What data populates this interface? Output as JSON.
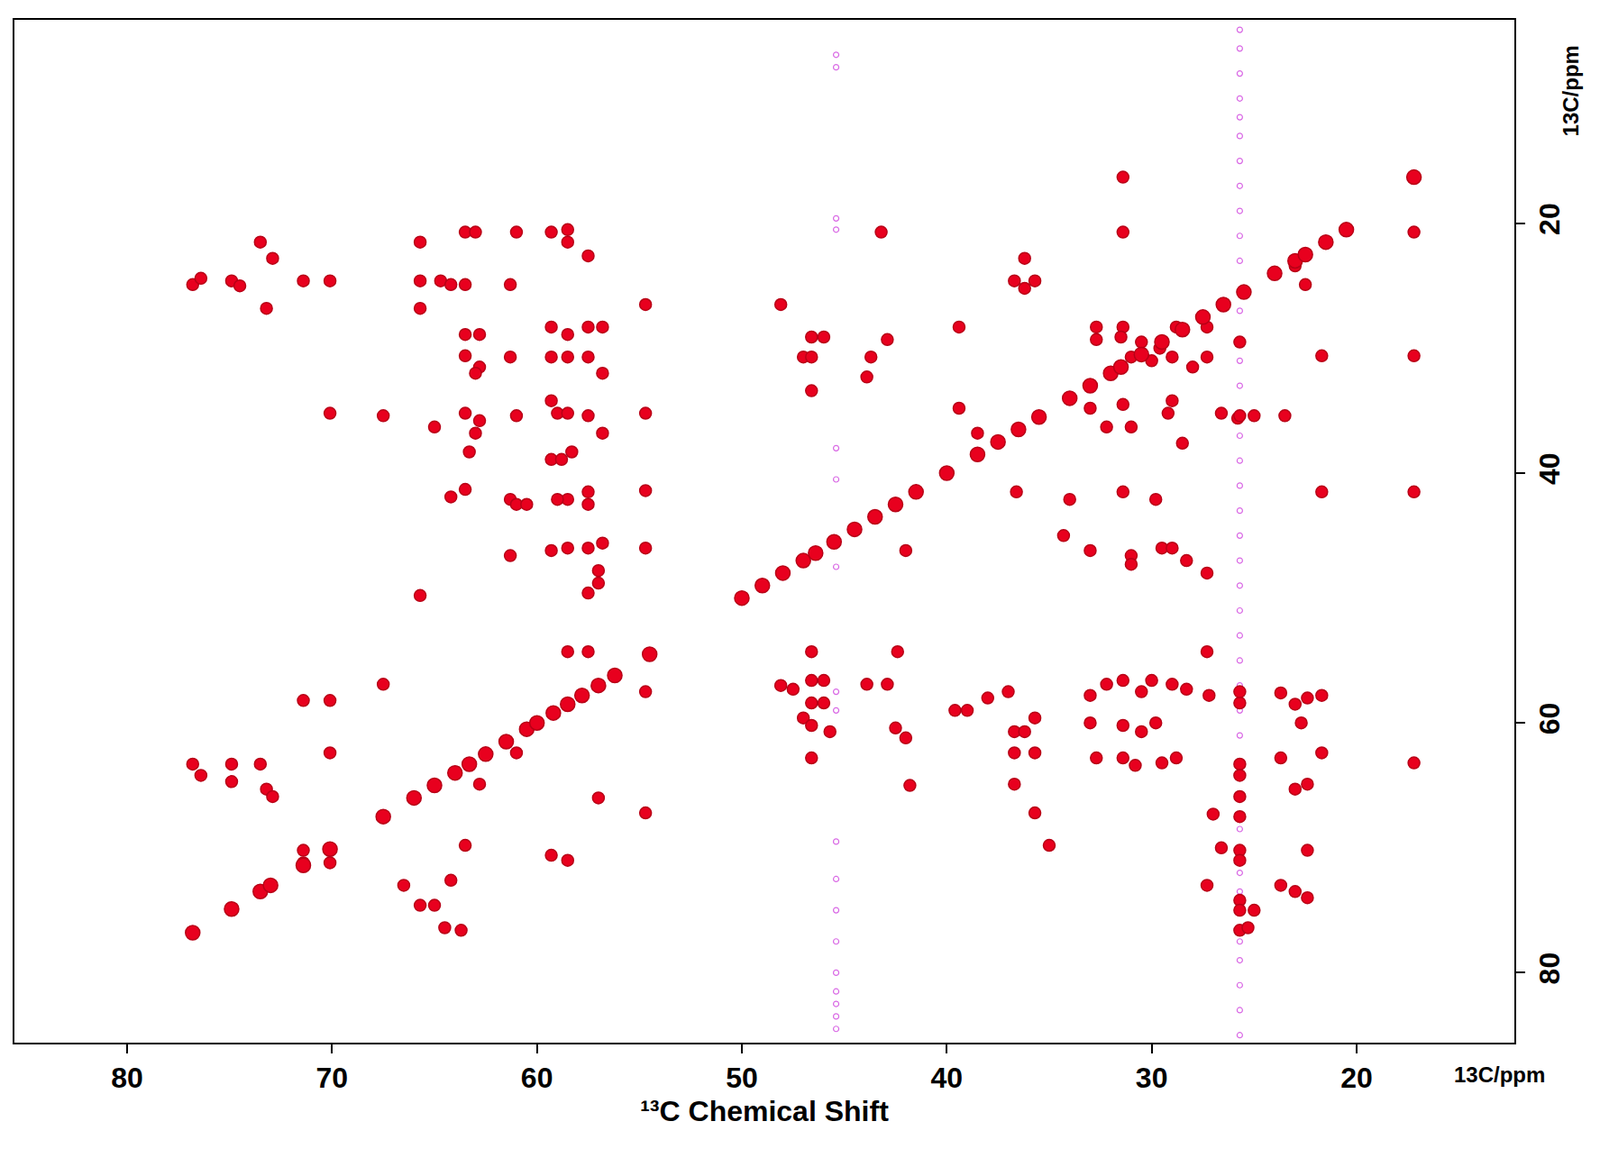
{
  "chart_data": {
    "type": "scatter",
    "xlabel": "¹³C Chemical Shift",
    "annotations": [
      {
        "text": "13C/ppm",
        "axis": "x"
      },
      {
        "text": "13C/ppm",
        "axis": "y"
      }
    ],
    "xlim": [
      85.5,
      12.3
    ],
    "ylim": [
      85.6,
      3.7
    ],
    "xticks": [
      80,
      70,
      60,
      50,
      40,
      30,
      20
    ],
    "yticks": [
      20,
      40,
      60,
      80
    ],
    "grid": false,
    "series": [
      {
        "color": "#d24fe0",
        "marker": "circle-open",
        "x": [
          45.4,
          45.4,
          45.4,
          45.4,
          45.4,
          45.4,
          45.4,
          45.4,
          45.4,
          45.4,
          45.4,
          45.4,
          45.4,
          45.4,
          45.4,
          45.4,
          45.4,
          45.4,
          25.7,
          25.7,
          25.7,
          25.7,
          25.7,
          25.7,
          25.7,
          25.7,
          25.7,
          25.7,
          25.7,
          25.7,
          25.7,
          25.7,
          25.7,
          25.7,
          25.7,
          25.7,
          25.7,
          25.7,
          25.7,
          25.7,
          25.7,
          25.7,
          25.7,
          25.7,
          25.7,
          25.7,
          25.7,
          25.7,
          25.7,
          25.7,
          25.7,
          25.7,
          25.7,
          25.7
        ],
        "y": [
          6.5,
          7.5,
          19.6,
          20.5,
          38.0,
          40.5,
          47.5,
          57.5,
          59.0,
          69.5,
          72.5,
          75.0,
          77.5,
          80.0,
          81.5,
          82.5,
          83.5,
          84.5,
          4.5,
          6.0,
          8.0,
          10.0,
          11.5,
          13.0,
          15.0,
          17.0,
          19.0,
          21.0,
          23.0,
          27.0,
          31.0,
          33.0,
          37.0,
          39.0,
          41.0,
          43.0,
          45.0,
          47.0,
          49.0,
          51.0,
          53.0,
          55.0,
          57.0,
          59.0,
          61.0,
          66.0,
          68.5,
          72.0,
          73.5,
          77.5,
          79.0,
          81.0,
          83.0,
          85.0
        ]
      },
      {
        "color": "#e8001e",
        "marker": "circle",
        "x": [
          76.8,
          76.4,
          76.8,
          76.4,
          74.9,
          74.5,
          74.9,
          74.9,
          73.5,
          72.9,
          73.2,
          73.5,
          73.2,
          72.9,
          71.4,
          70.1,
          70.1,
          71.4,
          70.1,
          70.1,
          71.4,
          70.1,
          71.4,
          70.1,
          67.5,
          67.5,
          65.7,
          65.7,
          65.7,
          65.0,
          65.7,
          66.5,
          65.7,
          65.0,
          64.2,
          64.5,
          63.7,
          64.7,
          64.2,
          63.5,
          63.0,
          63.5,
          64.2,
          63.5,
          62.8,
          63.5,
          62.8,
          63.0,
          63.5,
          62.8,
          63.0,
          63.3,
          63.5,
          63.5,
          62.8,
          61.0,
          61.3,
          61.3,
          61.0,
          61.3,
          61.0,
          60.5,
          61.3,
          61.0,
          59.3,
          58.5,
          58.5,
          57.5,
          59.3,
          58.5,
          57.5,
          59.3,
          58.5,
          57.5,
          56.8,
          56.8,
          59.3,
          59.0,
          58.5,
          57.5,
          56.8,
          59.3,
          58.8,
          58.3,
          57.5,
          57.5,
          58.5,
          59.0,
          59.3,
          58.5,
          57.5,
          56.8,
          57.0,
          57.0,
          57.5,
          59.3,
          58.5,
          57.5,
          58.5,
          57.0,
          54.7,
          54.7,
          54.7,
          54.7,
          54.7,
          54.7,
          48.1,
          48.1,
          47.5,
          46.6,
          46.0,
          47.0,
          46.6,
          46.6,
          46.6,
          46.6,
          46.0,
          46.6,
          46.0,
          47.0,
          46.6,
          45.7,
          46.6,
          42.9,
          43.7,
          43.9,
          43.9,
          42.9,
          42.5,
          42.0,
          41.8,
          42.4,
          42.0,
          43.2,
          39.4,
          39.4,
          38.5,
          39.6,
          39.0,
          38.0,
          37.0,
          36.2,
          36.7,
          35.7,
          36.2,
          36.6,
          34.0,
          36.7,
          36.2,
          35.7,
          36.7,
          35.7,
          36.7,
          35.7,
          35.0,
          32.7,
          31.4,
          32.7,
          31.5,
          30.5,
          31.0,
          30.0,
          28.8,
          29.6,
          29.0,
          28.0,
          33.0,
          31.4,
          32.2,
          31.0,
          29.2,
          29.0,
          28.5,
          31.4,
          31.4,
          34.3,
          33.0,
          31.0,
          31.0,
          29.5,
          29.0,
          28.3,
          31.4,
          29.8,
          33.0,
          32.2,
          31.4,
          30.5,
          30.0,
          29.0,
          28.3,
          27.2,
          33.0,
          31.4,
          30.5,
          29.8,
          32.7,
          31.4,
          30.8,
          29.5,
          28.8,
          27.3,
          27.3,
          27.3,
          27.3,
          27.0,
          27.3,
          26.6,
          25.8,
          26.6,
          25.7,
          25.7,
          25.7,
          25.7,
          25.7,
          25.7,
          25.7,
          25.7,
          25.7,
          25.7,
          25.7,
          25.3,
          25.0,
          25.7,
          25.7,
          25.0,
          23.5,
          23.7,
          23.7,
          23.0,
          23.7,
          23.0,
          23.0,
          22.4,
          22.7,
          22.4,
          22.4,
          22.4,
          21.7,
          21.7,
          23.0,
          22.5,
          21.7,
          21.7,
          17.2,
          17.2,
          17.2,
          17.2
        ],
        "y": [
          24.9,
          24.4,
          63.3,
          64.2,
          24.6,
          25.0,
          63.3,
          64.7,
          21.5,
          22.8,
          26.8,
          63.3,
          65.3,
          65.9,
          24.6,
          24.6,
          35.2,
          58.2,
          58.2,
          62.4,
          70.2,
          70.2,
          71.2,
          71.2,
          35.4,
          56.9,
          21.5,
          24.6,
          26.8,
          36.3,
          49.8,
          73.0,
          74.6,
          74.6,
          72.6,
          76.4,
          76.6,
          24.6,
          41.9,
          20.7,
          20.7,
          24.9,
          24.9,
          28.9,
          28.9,
          30.6,
          31.5,
          32.0,
          35.2,
          35.8,
          36.8,
          38.3,
          41.3,
          69.8,
          64.9,
          20.7,
          24.9,
          30.7,
          35.4,
          42.1,
          42.5,
          42.5,
          46.6,
          62.4,
          20.7,
          20.5,
          21.5,
          22.6,
          28.3,
          28.9,
          28.3,
          30.7,
          30.7,
          30.7,
          28.3,
          32.0,
          34.2,
          35.2,
          35.2,
          35.4,
          36.8,
          38.9,
          38.9,
          38.3,
          41.5,
          42.5,
          42.1,
          42.1,
          46.2,
          46.0,
          46.0,
          45.6,
          47.8,
          48.8,
          49.6,
          70.6,
          71.0,
          54.3,
          54.3,
          66.0,
          26.5,
          35.2,
          41.4,
          46.0,
          57.5,
          67.2,
          26.5,
          57.0,
          57.3,
          29.1,
          29.1,
          30.7,
          30.7,
          33.4,
          54.3,
          56.6,
          56.6,
          58.4,
          58.4,
          59.6,
          60.2,
          60.7,
          62.8,
          29.3,
          30.7,
          32.3,
          56.9,
          56.9,
          60.4,
          61.2,
          65.0,
          54.3,
          46.2,
          20.7,
          28.3,
          34.8,
          36.8,
          59.0,
          59.0,
          58.0,
          57.5,
          22.8,
          24.6,
          24.6,
          25.2,
          41.5,
          42.1,
          60.7,
          60.7,
          59.6,
          62.4,
          62.4,
          64.9,
          67.2,
          69.8,
          28.3,
          28.3,
          29.3,
          29.1,
          29.5,
          30.7,
          31.0,
          28.3,
          30.0,
          30.7,
          31.5,
          34.8,
          34.5,
          36.3,
          36.3,
          35.2,
          34.2,
          37.6,
          16.3,
          20.7,
          45.0,
          46.2,
          46.6,
          47.3,
          46.0,
          46.0,
          47.0,
          41.5,
          42.1,
          57.8,
          56.9,
          56.6,
          57.5,
          56.6,
          56.9,
          57.3,
          57.8,
          60.0,
          60.2,
          60.7,
          60.0,
          62.8,
          62.8,
          63.4,
          63.2,
          62.8,
          28.3,
          30.7,
          48.0,
          54.3,
          67.3,
          73.0,
          35.2,
          35.6,
          70.0,
          29.5,
          35.4,
          58.4,
          63.3,
          64.2,
          65.9,
          70.2,
          71.0,
          74.2,
          75.0,
          76.6,
          76.4,
          75.0,
          67.5,
          57.5,
          35.4,
          35.4,
          57.6,
          62.8,
          65.3,
          73.0,
          73.5,
          58.5,
          58.0,
          60.0,
          64.9,
          70.2,
          74.0,
          57.8,
          62.4,
          23.4,
          24.9,
          30.6,
          41.5,
          20.7,
          30.6,
          41.5,
          63.2
        ]
      },
      {
        "color": "#e8001e",
        "marker": "circle",
        "x": [
          76.8,
          74.9,
          73.5,
          73.0,
          71.4,
          70.1,
          67.5,
          66.0,
          65.0,
          64.0,
          63.3,
          62.5,
          61.5,
          60.5,
          60.0,
          59.2,
          58.5,
          57.8,
          57.0,
          56.2,
          54.5,
          50.0,
          49.0,
          48.0,
          47.0,
          46.4,
          45.5,
          44.5,
          43.5,
          42.5,
          41.5,
          40.0,
          38.5,
          37.5,
          36.5,
          35.5,
          34.0,
          33.0,
          32.0,
          31.5,
          30.5,
          29.5,
          28.5,
          27.5,
          26.5,
          25.5,
          24.0,
          23.0,
          22.5,
          21.5,
          20.5,
          17.2
        ],
        "y": [
          76.8,
          74.9,
          73.5,
          73.0,
          71.4,
          70.1,
          67.5,
          66.0,
          65.0,
          64.0,
          63.3,
          62.5,
          61.5,
          60.5,
          60.0,
          59.2,
          58.5,
          57.8,
          57.0,
          56.2,
          54.5,
          50.0,
          49.0,
          48.0,
          47.0,
          46.4,
          45.5,
          44.5,
          43.5,
          42.5,
          41.5,
          40.0,
          38.5,
          37.5,
          36.5,
          35.5,
          34.0,
          33.0,
          32.0,
          31.5,
          30.5,
          29.5,
          28.5,
          27.5,
          26.5,
          25.5,
          24.0,
          23.0,
          22.5,
          21.5,
          20.5,
          16.3
        ]
      }
    ]
  }
}
